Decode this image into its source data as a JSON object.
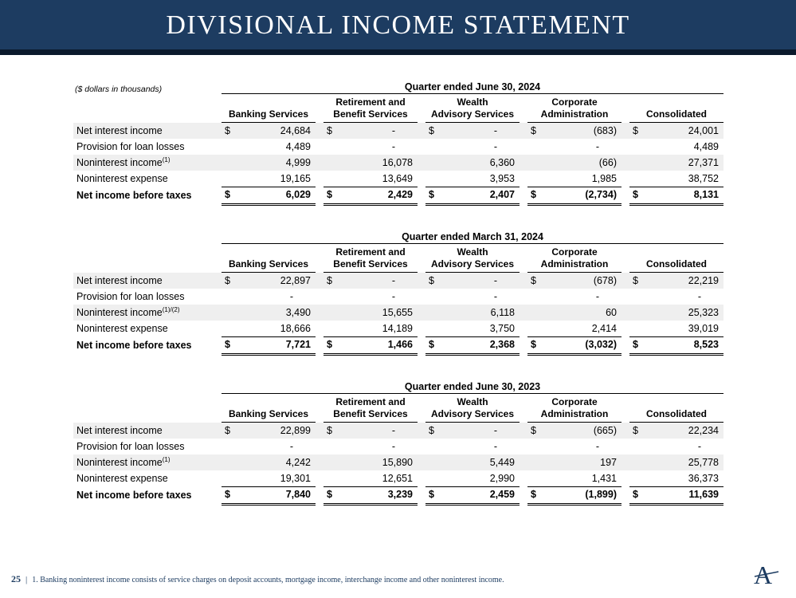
{
  "slide": {
    "title": "DIVISIONAL INCOME STATEMENT",
    "units_note": "($ dollars in thousands)",
    "currency_symbol": "$",
    "page_number": "25",
    "footer_divider": "|",
    "footnote": "1. Banking noninterest income consists of service charges on deposit accounts, mortgage income, interchange income and other noninterest income.",
    "logo_letter": "A"
  },
  "colors": {
    "header_band": "#1d3c61",
    "header_rule": "#0b1a2c",
    "header_text": "#ffffff",
    "row_shade": "#efefef",
    "footer_text": "#1d3c61"
  },
  "columns": [
    {
      "label": "Banking Services",
      "lines": [
        "Banking Services"
      ]
    },
    {
      "label": "Retirement and Benefit Services",
      "lines": [
        "Retirement and",
        "Benefit Services"
      ]
    },
    {
      "label": "Wealth Advisory Services",
      "lines": [
        "Wealth",
        "Advisory Services"
      ]
    },
    {
      "label": "Corporate Administration",
      "lines": [
        "Corporate",
        "Administration"
      ]
    },
    {
      "label": "Consolidated",
      "lines": [
        "Consolidated"
      ]
    }
  ],
  "tables": [
    {
      "title": "Quarter ended June 30, 2024",
      "rows": [
        {
          "label": "Net interest income",
          "sup": "",
          "dollar": true,
          "shaded": true,
          "values": [
            "24,684",
            "-",
            "-",
            "(683)",
            "24,001"
          ]
        },
        {
          "label": "Provision for loan losses",
          "sup": "",
          "values": [
            "4,489",
            "-",
            "-",
            "-",
            "4,489"
          ]
        },
        {
          "label": "Noninterest income",
          "sup": "(1)",
          "shaded": true,
          "values": [
            "4,999",
            "16,078",
            "6,360",
            "(66)",
            "27,371"
          ]
        },
        {
          "label": "Noninterest expense",
          "sup": "",
          "underline": true,
          "values": [
            "19,165",
            "13,649",
            "3,953",
            "1,985",
            "38,752"
          ]
        },
        {
          "label": "Net income before taxes",
          "sup": "",
          "dollar": true,
          "total": true,
          "values": [
            "6,029",
            "2,429",
            "2,407",
            "(2,734)",
            "8,131"
          ]
        }
      ]
    },
    {
      "title": "Quarter ended March 31, 2024",
      "rows": [
        {
          "label": "Net interest income",
          "sup": "",
          "dollar": true,
          "shaded": true,
          "values": [
            "22,897",
            "-",
            "-",
            "(678)",
            "22,219"
          ]
        },
        {
          "label": "Provision for loan losses",
          "sup": "",
          "values": [
            "-",
            "-",
            "-",
            "-",
            "-"
          ]
        },
        {
          "label": "Noninterest income",
          "sup": "(1)/(2)",
          "shaded": true,
          "values": [
            "3,490",
            "15,655",
            "6,118",
            "60",
            "25,323"
          ]
        },
        {
          "label": "Noninterest expense",
          "sup": "",
          "underline": true,
          "values": [
            "18,666",
            "14,189",
            "3,750",
            "2,414",
            "39,019"
          ]
        },
        {
          "label": "Net income before taxes",
          "sup": "",
          "dollar": true,
          "total": true,
          "values": [
            "7,721",
            "1,466",
            "2,368",
            "(3,032)",
            "8,523"
          ]
        }
      ]
    },
    {
      "title": "Quarter ended June 30, 2023",
      "rows": [
        {
          "label": "Net interest income",
          "sup": "",
          "dollar": true,
          "shaded": true,
          "values": [
            "22,899",
            "-",
            "-",
            "(665)",
            "22,234"
          ]
        },
        {
          "label": "Provision for loan losses",
          "sup": "",
          "values": [
            "-",
            "-",
            "-",
            "-",
            "-"
          ]
        },
        {
          "label": "Noninterest income",
          "sup": "(1)",
          "shaded": true,
          "values": [
            "4,242",
            "15,890",
            "5,449",
            "197",
            "25,778"
          ]
        },
        {
          "label": "Noninterest expense",
          "sup": "",
          "underline": true,
          "values": [
            "19,301",
            "12,651",
            "2,990",
            "1,431",
            "36,373"
          ]
        },
        {
          "label": "Net income before taxes",
          "sup": "",
          "dollar": true,
          "total": true,
          "values": [
            "7,840",
            "3,239",
            "2,459",
            "(1,899)",
            "11,639"
          ]
        }
      ]
    }
  ]
}
